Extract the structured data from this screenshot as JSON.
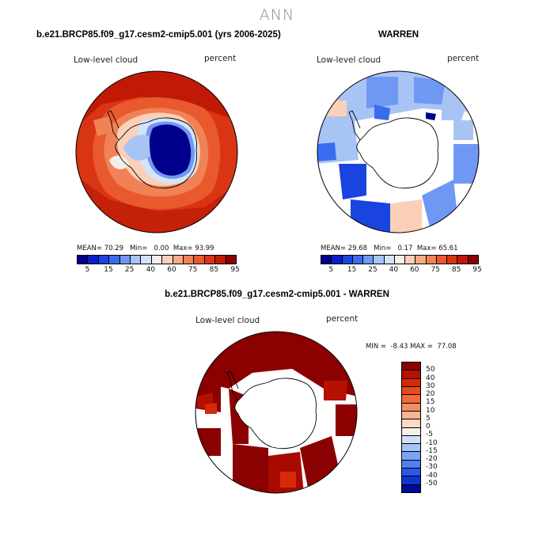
{
  "page_title": "ANN",
  "panels": {
    "model": {
      "title": "b.e21.BRCP85.f09_g17.cesm2-cmip5.001 (yrs 2006-2025)",
      "variable": "Low-level cloud",
      "units": "percent",
      "stats": {
        "mean_label": "MEAN=",
        "mean": "70.29",
        "min_label": "Min=",
        "min": "0.00",
        "max_label": "Max=",
        "max": "93.99"
      }
    },
    "obs": {
      "title": "WARREN",
      "variable": "Low-level cloud",
      "units": "percent",
      "stats": {
        "mean_label": "MEAN=",
        "mean": "29.68",
        "min_label": "Min=",
        "min": "0.17",
        "max_label": "Max=",
        "max": "65.61"
      }
    },
    "diff": {
      "title": "b.e21.BRCP85.f09_g17.cesm2-cmip5.001 - WARREN",
      "variable": "Low-level cloud",
      "units": "percent",
      "stats": {
        "min_label": "MIN =",
        "min": "-8.43",
        "max_label": "MAX =",
        "max": "77.08"
      }
    }
  },
  "colorbar_abs": {
    "tick_labels": [
      "5",
      "15",
      "25",
      "40",
      "60",
      "75",
      "85",
      "95"
    ],
    "colors": [
      "#00008b",
      "#0a1fc8",
      "#1a44e0",
      "#3a6cf0",
      "#6f98f5",
      "#a8c4f5",
      "#d3e3f8",
      "#f6efe8",
      "#fbd0b8",
      "#f6ab87",
      "#f08256",
      "#e85a2e",
      "#d93514",
      "#c01a06",
      "#8b0000"
    ]
  },
  "colorbar_diff": {
    "tick_labels": [
      "50",
      "40",
      "30",
      "20",
      "15",
      "10",
      "5",
      "0",
      "-5",
      "-10",
      "-15",
      "-20",
      "-30",
      "-40",
      "-50"
    ],
    "colors": [
      "#8b0000",
      "#b51000",
      "#d42a0a",
      "#e84a1e",
      "#f06a3a",
      "#f58e62",
      "#f9b591",
      "#fbd9c2",
      "#f4f0ec",
      "#d0e0f6",
      "#a6c3f4",
      "#7aa3f2",
      "#4f7ff0",
      "#2a58e6",
      "#1234cc",
      "#000a9a"
    ]
  }
}
